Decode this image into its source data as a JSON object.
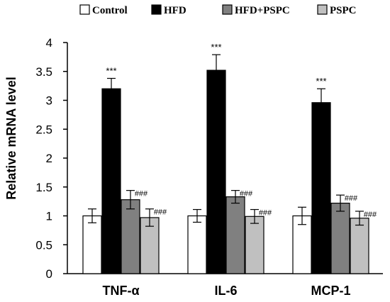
{
  "chart_data": {
    "type": "bar",
    "categories": [
      "TNF-α",
      "IL-6",
      "MCP-1"
    ],
    "series": [
      {
        "name": "Control",
        "color": "#ffffff",
        "values": [
          1.0,
          1.0,
          1.0
        ],
        "errors": [
          0.12,
          0.11,
          0.15
        ],
        "annotations": [
          "",
          "",
          ""
        ]
      },
      {
        "name": "HFD",
        "color": "#000000",
        "values": [
          3.2,
          3.52,
          2.96
        ],
        "errors": [
          0.18,
          0.27,
          0.24
        ],
        "annotations": [
          "***",
          "***",
          "***"
        ]
      },
      {
        "name": "HFD+PSPC",
        "color": "#808080",
        "values": [
          1.28,
          1.33,
          1.22
        ],
        "errors": [
          0.16,
          0.11,
          0.14
        ],
        "annotations": [
          "###",
          "###",
          "###"
        ]
      },
      {
        "name": "PSPC",
        "color": "#c0c0c0",
        "values": [
          0.97,
          0.99,
          0.96
        ],
        "errors": [
          0.15,
          0.12,
          0.12
        ],
        "annotations": [
          "###",
          "###",
          "###"
        ]
      }
    ],
    "ylabel": "Relative mRNA level",
    "xlabel": "",
    "ylim": [
      0,
      4
    ],
    "yticks": [
      "0",
      "0.5",
      "1",
      "1.5",
      "2",
      "2.5",
      "3",
      "3.5",
      "4"
    ],
    "grid": false,
    "legend_position": "top"
  }
}
